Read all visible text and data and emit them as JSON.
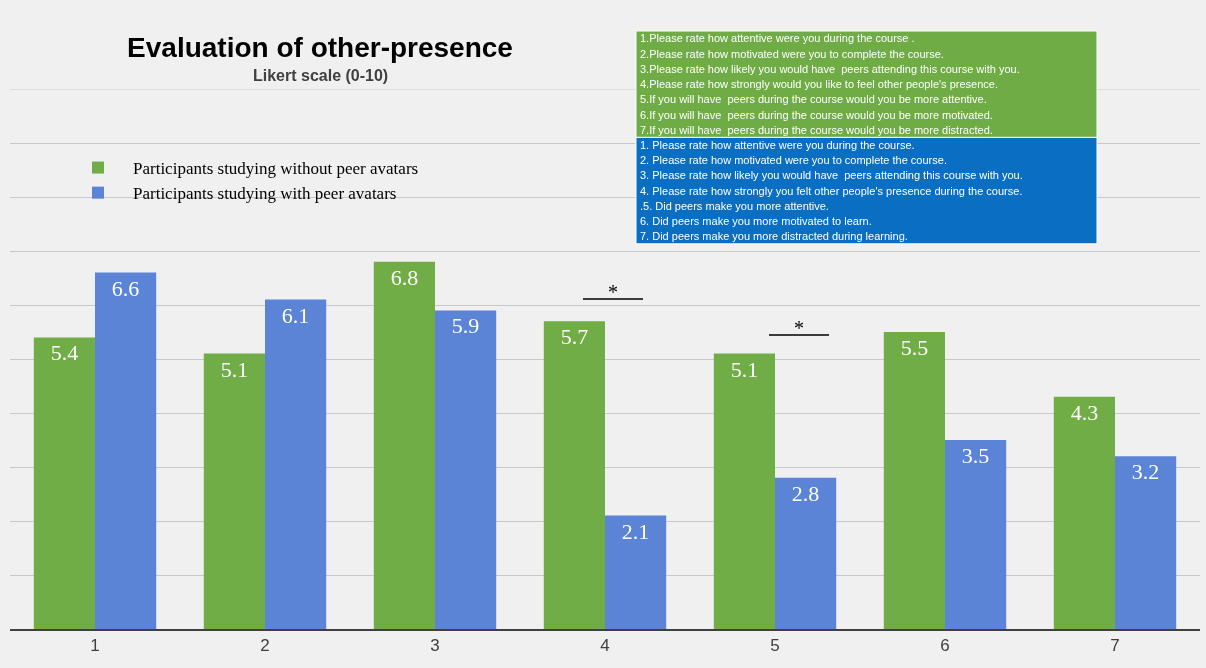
{
  "chart_data": {
    "type": "bar",
    "title": "Evaluation of other-presence",
    "subtitle": "Likert scale (0-10)",
    "categories": [
      "1",
      "2",
      "3",
      "4",
      "5",
      "6",
      "7"
    ],
    "series": [
      {
        "name": "Participants studying without peer avatars",
        "color": "#70ad47",
        "values": [
          5.4,
          5.1,
          6.8,
          5.7,
          5.1,
          5.5,
          4.3
        ]
      },
      {
        "name": "Participants studying with peer avatars",
        "color": "#5b84d6",
        "values": [
          6.6,
          6.1,
          5.9,
          2.1,
          2.8,
          3.5,
          3.2
        ]
      }
    ],
    "ylim": [
      0,
      10
    ],
    "yticks": [
      {
        "value": 0,
        "label": null
      },
      {
        "value": 1,
        "label": null
      },
      {
        "value": 2,
        "label": null
      },
      {
        "value": 3,
        "label": null
      },
      {
        "value": 4,
        "label": null
      },
      {
        "value": 5,
        "label": null
      },
      {
        "value": 6,
        "label": null
      },
      {
        "value": 7,
        "label": null
      },
      {
        "value": 8,
        "label": null
      },
      {
        "value": 9,
        "label": null
      },
      {
        "value": 10,
        "label": null
      }
    ],
    "tick_labels": "x",
    "grid": "y",
    "legend": "top left",
    "data_labels": true,
    "annotations": [
      "*",
      "*",
      "1.Please rate how attentive were you during the course .",
      "2.Please rate how motivated were you to complete the course.",
      "3.Please rate how likely you would have  peers attending this course with you.",
      "4.Please rate how strongly would you like to feel other people's presence.",
      "5.If you will have  peers during the course would you be more attentive.",
      "6.If you will have  peers during the course would you be more motivated.",
      "7.If you will have  peers during the course would you be more distracted.",
      "1. Please rate how attentive were you during the course.",
      "2. Please rate how motivated were you to complete the course.",
      "3. Please rate how likely you would have  peers attending this course with you.",
      "4. Please rate how strongly you felt other people's presence during the course.",
      ".5. Did peers make you more attentive.",
      "6. Did peers make you more motivated to learn.",
      "7. Did peers make you more distracted during learning."
    ]
  }
}
